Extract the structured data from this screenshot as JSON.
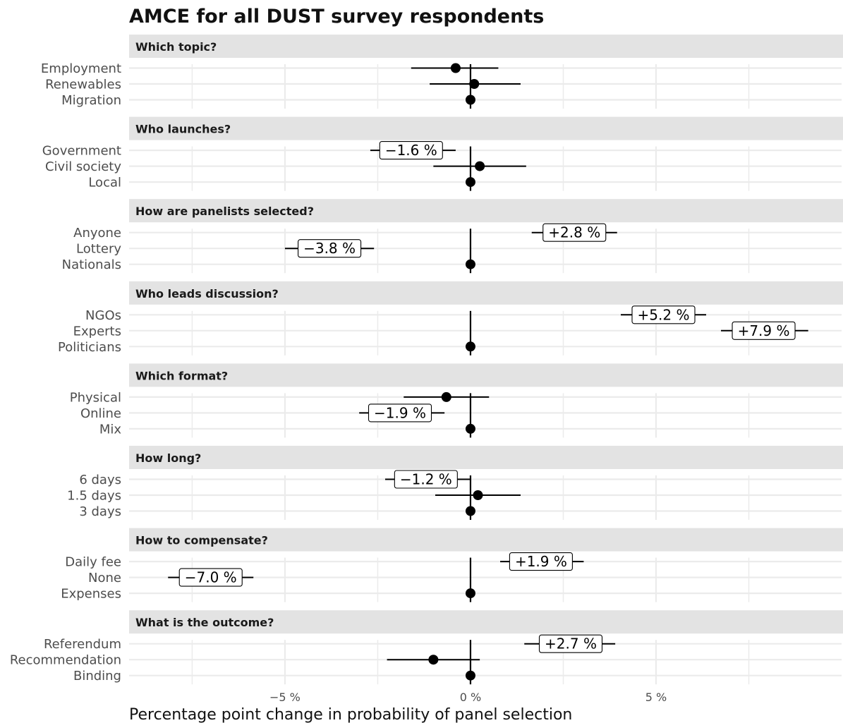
{
  "chart_data": {
    "type": "scatter",
    "title": "AMCE for all DUST survey respondents",
    "xlabel": "Percentage point change in probability of panel selection",
    "xlim": [
      -9.2,
      10
    ],
    "xticks": [
      {
        "value": -5,
        "label": "−5 %"
      },
      {
        "value": 0,
        "label": "0 %"
      },
      {
        "value": 5,
        "label": "5 %"
      }
    ],
    "grid": true,
    "facets": [
      {
        "title": "Which topic?",
        "levels": [
          {
            "name": "Employment",
            "estimate": -0.4,
            "low": -1.6,
            "high": 0.75,
            "label": ""
          },
          {
            "name": "Renewables",
            "estimate": 0.1,
            "low": -1.1,
            "high": 1.35,
            "label": ""
          },
          {
            "name": "Migration",
            "estimate": 0,
            "low": 0,
            "high": 0,
            "label": ""
          }
        ]
      },
      {
        "title": "Who launches?",
        "levels": [
          {
            "name": "Government",
            "estimate": -1.6,
            "low": -2.7,
            "high": -0.4,
            "label": "−1.6 %"
          },
          {
            "name": "Civil society",
            "estimate": 0.25,
            "low": -1.0,
            "high": 1.5,
            "label": ""
          },
          {
            "name": "Local",
            "estimate": 0,
            "low": 0,
            "high": 0,
            "label": ""
          }
        ]
      },
      {
        "title": "How are panelists selected?",
        "levels": [
          {
            "name": "Anyone",
            "estimate": 2.8,
            "low": 1.65,
            "high": 3.95,
            "label": "+2.8 %"
          },
          {
            "name": "Lottery",
            "estimate": -3.8,
            "low": -5.0,
            "high": -2.6,
            "label": "−3.8 %"
          },
          {
            "name": "Nationals",
            "estimate": 0,
            "low": 0,
            "high": 0,
            "label": ""
          }
        ]
      },
      {
        "title": "Who leads discussion?",
        "levels": [
          {
            "name": "NGOs",
            "estimate": 5.2,
            "low": 4.05,
            "high": 6.35,
            "label": "+5.2 %"
          },
          {
            "name": "Experts",
            "estimate": 7.9,
            "low": 6.75,
            "high": 9.1,
            "label": "+7.9 %"
          },
          {
            "name": "Politicians",
            "estimate": 0,
            "low": 0,
            "high": 0,
            "label": ""
          }
        ]
      },
      {
        "title": "Which format?",
        "levels": [
          {
            "name": "Physical",
            "estimate": -0.65,
            "low": -1.8,
            "high": 0.5,
            "label": ""
          },
          {
            "name": "Online",
            "estimate": -1.9,
            "low": -3.0,
            "high": -0.7,
            "label": "−1.9 %"
          },
          {
            "name": "Mix",
            "estimate": 0,
            "low": 0,
            "high": 0,
            "label": ""
          }
        ]
      },
      {
        "title": "How long?",
        "levels": [
          {
            "name": "6 days",
            "estimate": -1.2,
            "low": -2.3,
            "high": 0.0,
            "label": "−1.2 %"
          },
          {
            "name": "1.5 days",
            "estimate": 0.2,
            "low": -0.95,
            "high": 1.35,
            "label": ""
          },
          {
            "name": "3 days",
            "estimate": 0,
            "low": 0,
            "high": 0,
            "label": ""
          }
        ]
      },
      {
        "title": "How to compensate?",
        "levels": [
          {
            "name": "Daily fee",
            "estimate": 1.9,
            "low": 0.8,
            "high": 3.05,
            "label": "+1.9 %"
          },
          {
            "name": "None",
            "estimate": -7.0,
            "low": -8.15,
            "high": -5.85,
            "label": "−7.0 %"
          },
          {
            "name": "Expenses",
            "estimate": 0,
            "low": 0,
            "high": 0,
            "label": ""
          }
        ]
      },
      {
        "title": "What is the outcome?",
        "levels": [
          {
            "name": "Referendum",
            "estimate": 2.7,
            "low": 1.45,
            "high": 3.9,
            "label": "+2.7 %"
          },
          {
            "name": "Recommendation",
            "estimate": -1.0,
            "low": -2.25,
            "high": 0.25,
            "label": ""
          },
          {
            "name": "Binding",
            "estimate": 0,
            "low": 0,
            "high": 0,
            "label": ""
          }
        ]
      }
    ]
  }
}
